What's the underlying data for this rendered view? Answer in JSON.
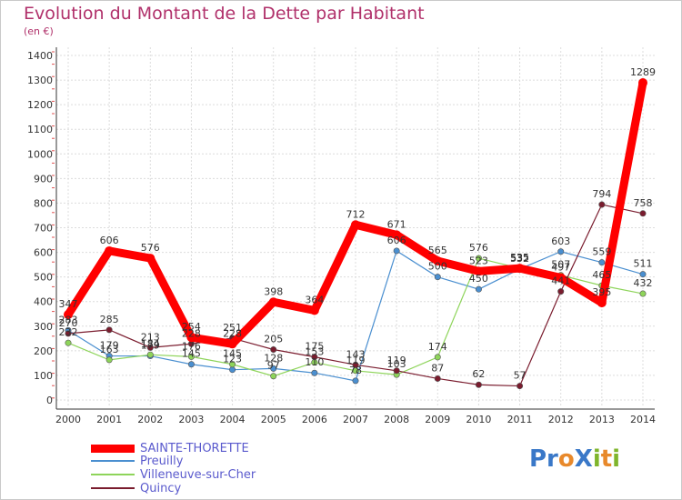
{
  "chart_data": {
    "type": "line",
    "title": "Evolution du Montant de la Dette par Habitant",
    "ylabel": "(en €)",
    "xlabel": "",
    "ylim": [
      0,
      1400
    ],
    "yticks": [
      0,
      100,
      200,
      300,
      400,
      500,
      600,
      700,
      800,
      900,
      1000,
      1100,
      1200,
      1300,
      1400
    ],
    "x": [
      "2000",
      "2001",
      "2002",
      "2003",
      "2004",
      "2005",
      "2006",
      "2007",
      "2008",
      "2009",
      "2010",
      "2011",
      "2012",
      "2013",
      "2014"
    ],
    "grid": true,
    "legend_position": "bottom-left",
    "series": [
      {
        "name": "SAINTE-THORETTE",
        "color": "#ff0000",
        "emphasis": true,
        "values": [
          347,
          606,
          576,
          254,
          228,
          398,
          364,
          712,
          671,
          565,
          523,
          535,
          497,
          395,
          1289
        ]
      },
      {
        "name": "Preuilly",
        "color": "#4a8fd0",
        "values": [
          283,
          179,
          179,
          145,
          123,
          128,
          110,
          78,
          606,
          500,
          450,
          532,
          603,
          559,
          511
        ]
      },
      {
        "name": "Villeneuve-sur-Cher",
        "color": "#8ed45a",
        "values": [
          232,
          163,
          184,
          176,
          145,
          97,
          153,
          119,
          103,
          174,
          576,
          535,
          507,
          465,
          432
        ]
      },
      {
        "name": "Quincy",
        "color": "#7a1c2e",
        "values": [
          270,
          285,
          213,
          228,
          251,
          205,
          175,
          143,
          119,
          87,
          62,
          57,
          441,
          794,
          758
        ]
      }
    ]
  },
  "branding": {
    "logo_text": "ProXiti"
  }
}
